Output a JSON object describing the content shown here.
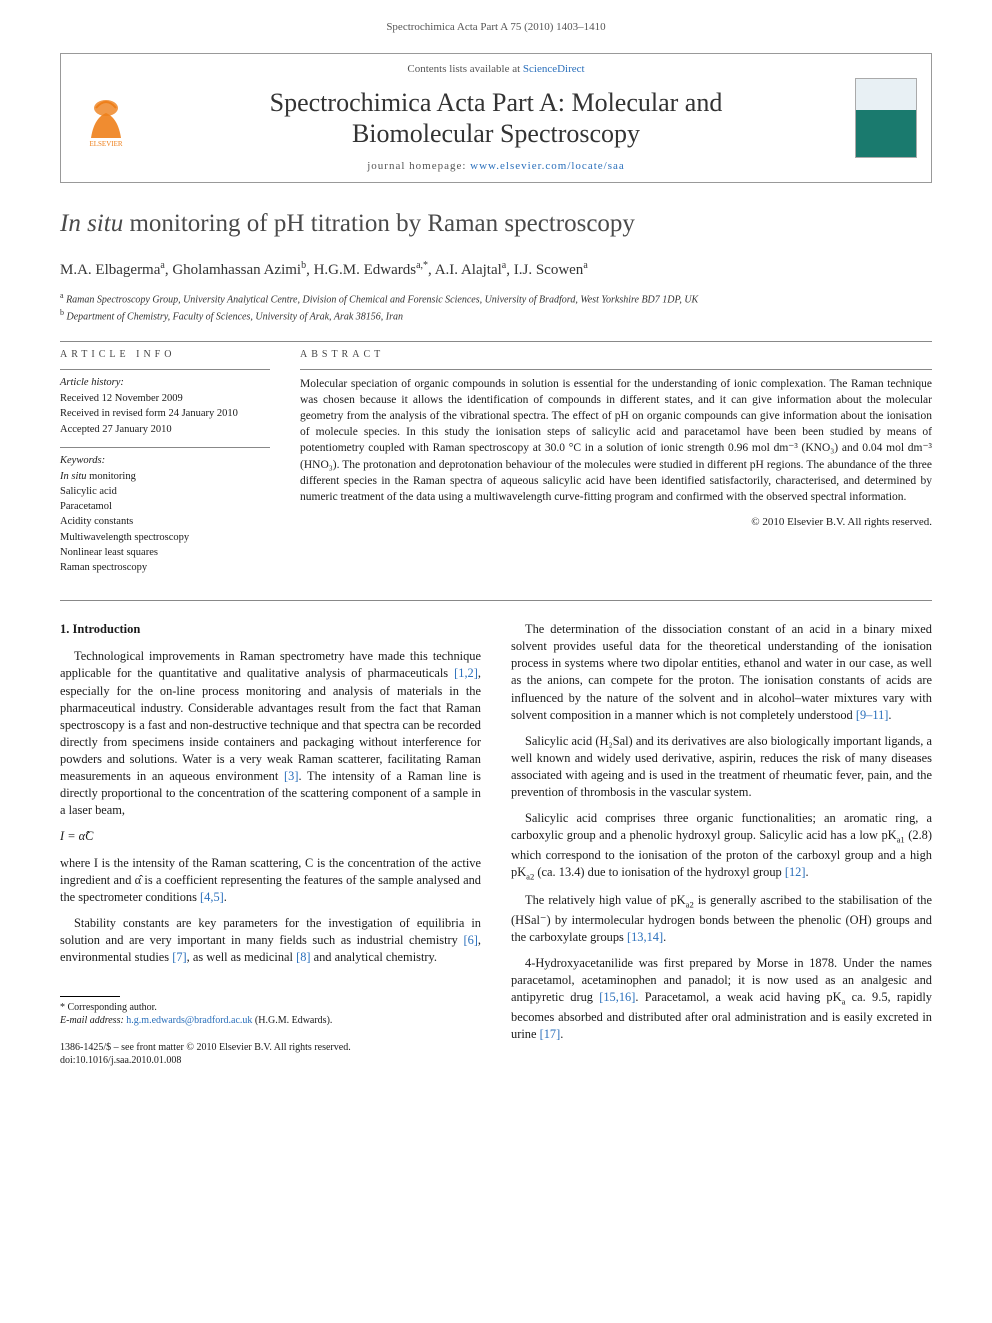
{
  "running_header": "Spectrochimica Acta Part A 75 (2010) 1403–1410",
  "masthead": {
    "contents_pre": "Contents lists available at ",
    "contents_link": "ScienceDirect",
    "journal_name_line1": "Spectrochimica Acta Part A: Molecular and",
    "journal_name_line2": "Biomolecular Spectroscopy",
    "homepage_pre": "journal homepage: ",
    "homepage_link": "www.elsevier.com/locate/saa",
    "elsevier_orange": "#ee7f1a",
    "cover_top": "#e8f0f4",
    "cover_bottom": "#1a7a6e"
  },
  "title": {
    "italic": "In situ",
    "rest": " monitoring of pH titration by Raman spectroscopy"
  },
  "authors_html": "M.A. Elbagerma<sup>a</sup>, Gholamhassan Azimi<sup>b</sup>, H.G.M. Edwards<sup>a,*</sup>, A.I. Alajtal<sup>a</sup>, I.J. Scowen<sup>a</sup>",
  "affiliations": [
    {
      "marker": "a",
      "text": "Raman Spectroscopy Group, University Analytical Centre, Division of Chemical and Forensic Sciences, University of Bradford, West Yorkshire BD7 1DP, UK"
    },
    {
      "marker": "b",
      "text": "Department of Chemistry, Faculty of Sciences, University of Arak, Arak 38156, Iran"
    }
  ],
  "info": {
    "heading": "article info",
    "history_label": "Article history:",
    "history": [
      "Received 12 November 2009",
      "Received in revised form 24 January 2010",
      "Accepted 27 January 2010"
    ],
    "keywords_label": "Keywords:",
    "keywords": [
      "In situ monitoring",
      "Salicylic acid",
      "Paracetamol",
      "Acidity constants",
      "Multiwavelength spectroscopy",
      "Nonlinear least squares",
      "Raman spectroscopy"
    ]
  },
  "abstract": {
    "heading": "abstract",
    "text": "Molecular speciation of organic compounds in solution is essential for the understanding of ionic complexation. The Raman technique was chosen because it allows the identification of compounds in different states, and it can give information about the molecular geometry from the analysis of the vibrational spectra. The effect of pH on organic compounds can give information about the ionisation of molecule species. In this study the ionisation steps of salicylic acid and paracetamol have been been studied by means of potentiometry coupled with Raman spectroscopy at 30.0 °C in a solution of ionic strength 0.96 mol dm⁻³ (KNO₃) and 0.04 mol dm⁻³ (HNO₃). The protonation and deprotonation behaviour of the molecules were studied in different pH regions. The abundance of the three different species in the Raman spectra of aqueous salicylic acid have been identified satisfactorily, characterised, and determined by numeric treatment of the data using a multiwavelength curve-fitting program and confirmed with the observed spectral information.",
    "copyright": "© 2010 Elsevier B.V. All rights reserved."
  },
  "body": {
    "section_heading": "1. Introduction",
    "col1": {
      "p1_pre": "Technological improvements in Raman spectrometry have made this technique applicable for the quantitative and qualitative analysis of pharmaceuticals ",
      "p1_ref1": "[1,2]",
      "p1_mid": ", especially for the on-line process monitoring and analysis of materials in the pharmaceutical industry. Considerable advantages result from the fact that Raman spectroscopy is a fast and non-destructive technique and that spectra can be recorded directly from specimens inside containers and packaging without interference for powders and solutions. Water is a very weak Raman scatterer, facilitating Raman measurements in an aqueous environment ",
      "p1_ref2": "[3]",
      "p1_post": ". The intensity of a Raman line is directly proportional to the concentration of the scattering component of a sample in a laser beam,",
      "equation": "I = α̂C",
      "p2_pre": "where I is the intensity of the Raman scattering, C is the concentration of the active ingredient and α̂ is a coefficient representing the features of the sample analysed and the spectrometer conditions ",
      "p2_ref": "[4,5]",
      "p2_post": ".",
      "p3_pre": "Stability constants are key parameters for the investigation of equilibria in solution and are very important in many fields such as industrial chemistry ",
      "p3_ref1": "[6]",
      "p3_mid1": ", environmental studies ",
      "p3_ref2": "[7]",
      "p3_mid2": ", as well as medicinal ",
      "p3_ref3": "[8]",
      "p3_post": " and analytical chemistry."
    },
    "col2": {
      "p1_pre": "The determination of the dissociation constant of an acid in a binary mixed solvent provides useful data for the theoretical understanding of the ionisation process in systems where two dipolar entities, ethanol and water in our case, as well as the anions, can compete for the proton. The ionisation constants of acids are influenced by the nature of the solvent and in alcohol–water mixtures vary with solvent composition in a manner which is not completely understood ",
      "p1_ref": "[9–11]",
      "p1_post": ".",
      "p2": "Salicylic acid (H₂Sal) and its derivatives are also biologically important ligands, a well known and widely used derivative, aspirin, reduces the risk of many diseases associated with ageing and is used in the treatment of rheumatic fever, pain, and the prevention of thrombosis in the vascular system.",
      "p3_pre": "Salicylic acid comprises three organic functionalities; an aromatic ring, a carboxylic group and a phenolic hydroxyl group. Salicylic acid has a low pK",
      "p3_a1": "a1",
      "p3_mid1": " (2.8) which correspond to the ionisation of the proton of the carboxyl group and a high pK",
      "p3_a2": "a2",
      "p3_mid2": " (ca. 13.4) due to ionisation of the hydroxyl group ",
      "p3_ref": "[12]",
      "p3_post": ".",
      "p4_pre": "The relatively high value of pK",
      "p4_a": "a2",
      "p4_mid": " is generally ascribed to the stabilisation of the (HSal⁻) by intermolecular hydrogen bonds between the phenolic (OH) groups and the carboxylate groups ",
      "p4_ref": "[13,14]",
      "p4_post": ".",
      "p5_pre": "4-Hydroxyacetanilide was first prepared by Morse in 1878. Under the names paracetamol, acetaminophen and panadol; it is now used as an analgesic and antipyretic drug ",
      "p5_ref1": "[15,16]",
      "p5_mid": ". Paracetamol, a weak acid having pK",
      "p5_a": "a",
      "p5_mid2": " ca. 9.5, rapidly becomes absorbed and distributed after oral administration and is easily excreted in urine ",
      "p5_ref2": "[17]",
      "p5_post": "."
    }
  },
  "footnote": {
    "corr": "* Corresponding author.",
    "email_label": "E-mail address:",
    "email": "h.g.m.edwards@bradford.ac.uk",
    "email_name": "(H.G.M. Edwards)."
  },
  "footer": {
    "line1": "1386-1425/$ – see front matter © 2010 Elsevier B.V. All rights reserved.",
    "line2": "doi:10.1016/j.saa.2010.01.008"
  },
  "colors": {
    "link": "#2a6fbb",
    "text": "#1a1a1a",
    "heading_grey": "#4a4a4a"
  }
}
